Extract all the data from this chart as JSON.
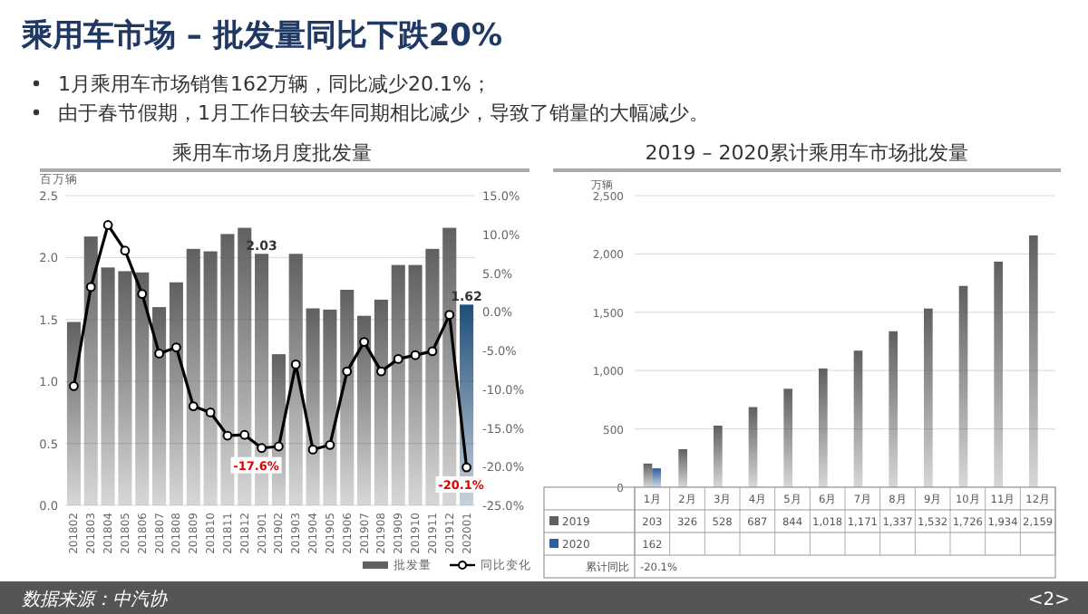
{
  "chart_data": [
    {
      "type": "other",
      "title": "乘用车市场 – 批发量同比下跌20%",
      "annotations": [
        "1月乘用车市场销售162万辆，同比减少20.1%；",
        "由于春节假期，1月工作日较去年同期相比减少，导致了销量的大幅减少。",
        "数据来源：中汽协",
        "<2>"
      ]
    },
    {
      "type": "bar",
      "title": "乘用车市场月度批发量",
      "ylabel": "百万辆",
      "categories": [
        "201802",
        "201803",
        "201804",
        "201805",
        "201806",
        "201807",
        "201808",
        "201809",
        "201810",
        "201811",
        "201812",
        "201901",
        "201902",
        "201903",
        "201904",
        "201905",
        "201906",
        "201907",
        "201908",
        "201909",
        "201910",
        "201911",
        "201912",
        "202001"
      ],
      "series": [
        {
          "name": "批发量",
          "color": "#606060",
          "colors": [
            "#606060",
            "#606060",
            "#606060",
            "#606060",
            "#606060",
            "#606060",
            "#606060",
            "#606060",
            "#606060",
            "#606060",
            "#606060",
            "#606060",
            "#606060",
            "#606060",
            "#606060",
            "#606060",
            "#606060",
            "#606060",
            "#606060",
            "#606060",
            "#606060",
            "#606060",
            "#606060",
            "#1f4e79"
          ],
          "values": [
            1.48,
            2.17,
            1.92,
            1.89,
            1.88,
            1.6,
            1.8,
            2.07,
            2.05,
            2.19,
            2.24,
            2.03,
            1.22,
            2.03,
            1.59,
            1.58,
            1.74,
            1.53,
            1.66,
            1.94,
            1.94,
            2.07,
            2.24,
            1.62
          ],
          "value_labels": [
            null,
            null,
            null,
            null,
            null,
            null,
            null,
            null,
            null,
            null,
            null,
            "2.03",
            null,
            null,
            null,
            null,
            null,
            null,
            null,
            null,
            null,
            null,
            null,
            "1.62"
          ]
        },
        {
          "name": "同比变化",
          "type": "line",
          "axis": "y2",
          "color": "#000000",
          "marker": "circle",
          "values": [
            -9.6,
            3.2,
            11.2,
            7.9,
            2.3,
            -5.4,
            -4.6,
            -12.2,
            -13.0,
            -16.0,
            -15.9,
            -17.6,
            -17.4,
            -6.8,
            -17.8,
            -17.2,
            -7.7,
            -3.9,
            -7.7,
            -6.1,
            -5.6,
            -5.1,
            -0.4,
            -20.1
          ],
          "value_labels": [
            null,
            null,
            null,
            null,
            null,
            null,
            null,
            null,
            null,
            null,
            null,
            "-17.6%",
            null,
            null,
            null,
            null,
            null,
            null,
            null,
            null,
            null,
            null,
            null,
            "-20.1%"
          ]
        }
      ],
      "ylim": [
        0,
        2.5
      ],
      "yticks": [
        {
          "value": 0,
          "label": "0.0"
        },
        {
          "value": 0.5,
          "label": "0.5"
        },
        {
          "value": 1,
          "label": "1.0"
        },
        {
          "value": 1.5,
          "label": "1.5"
        },
        {
          "value": 2,
          "label": "2.0"
        },
        {
          "value": 2.5,
          "label": "2.5"
        }
      ],
      "y2lim": [
        -25,
        15
      ],
      "y2ticks": [
        {
          "value": -25,
          "label": "-25.0%"
        },
        {
          "value": -20,
          "label": "-20.0%"
        },
        {
          "value": -15,
          "label": "-15.0%"
        },
        {
          "value": -10,
          "label": "-10.0%"
        },
        {
          "value": -5,
          "label": "-5.0%"
        },
        {
          "value": 0,
          "label": "0.0%"
        },
        {
          "value": 5,
          "label": "5.0%"
        },
        {
          "value": 10,
          "label": "10.0%"
        },
        {
          "value": 15,
          "label": "15.0%"
        }
      ],
      "grid": "y",
      "legend": "bottom right"
    },
    {
      "type": "bar",
      "title": "2019 – 2020累计乘用车市场批发量",
      "ylabel": "万辆",
      "categories": [
        "1月",
        "2月",
        "3月",
        "4月",
        "5月",
        "6月",
        "7月",
        "8月",
        "9月",
        "10月",
        "11月",
        "12月"
      ],
      "series": [
        {
          "name": "2019",
          "color": "#606060",
          "values": [
            203,
            326,
            528,
            687,
            844,
            1018,
            1171,
            1337,
            1532,
            1726,
            1934,
            2159
          ],
          "value_labels": [
            "203",
            "326",
            "528",
            "687",
            "844",
            "1,018",
            "1,171",
            "1,337",
            "1,532",
            "1,726",
            "1,934",
            "2,159"
          ]
        },
        {
          "name": "2020",
          "color": "#2e5f9e",
          "values": [
            162,
            null,
            null,
            null,
            null,
            null,
            null,
            null,
            null,
            null,
            null,
            null
          ],
          "value_labels": [
            "162",
            null,
            null,
            null,
            null,
            null,
            null,
            null,
            null,
            null,
            null,
            null
          ]
        }
      ],
      "legend": "bottom left",
      "ylim": [
        0,
        2500
      ],
      "yticks": [
        {
          "value": 0,
          "label": "0"
        },
        {
          "value": 500,
          "label": "500"
        },
        {
          "value": 1000,
          "label": "1,000"
        },
        {
          "value": 1500,
          "label": "1,500"
        },
        {
          "value": 2000,
          "label": "2,000"
        },
        {
          "value": 2500,
          "label": "2,500"
        }
      ],
      "grid": "y",
      "annotations": [
        "累计同比",
        "-20.1%"
      ]
    }
  ]
}
